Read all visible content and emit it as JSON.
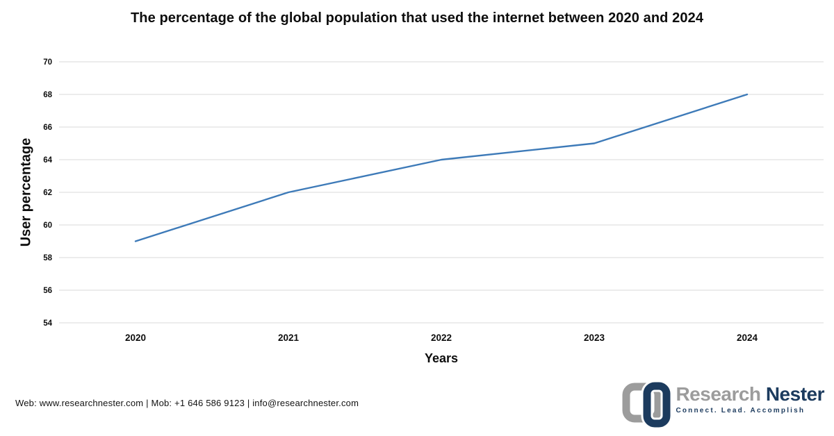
{
  "chart_data": {
    "type": "line",
    "title": "The percentage of the global population that used the internet between 2020 and 2024",
    "categories": [
      "2020",
      "2021",
      "2022",
      "2023",
      "2024"
    ],
    "values": [
      59,
      62,
      64,
      65,
      68
    ],
    "xlabel": "Years",
    "ylabel": "User percentage",
    "ylim": [
      54,
      70
    ],
    "ytick_step": 2,
    "yticks": [
      54,
      56,
      58,
      60,
      62,
      64,
      66,
      68,
      70
    ],
    "grid": true,
    "legend": "none",
    "line_color": "#3d7ab8",
    "gridline_color": "#d9d9d9",
    "text_color": "#0d0d0d"
  },
  "footer": {
    "contact": "Web: www.researchnester.com | Mob: +1 646 586 9123 | info@researchnester.com"
  },
  "logo": {
    "brand_primary": "Research",
    "brand_secondary": "Nester",
    "tagline": "Connect. Lead. Accomplish",
    "gray_color": "#9c9c9c",
    "navy_color": "#1c3b5e"
  }
}
